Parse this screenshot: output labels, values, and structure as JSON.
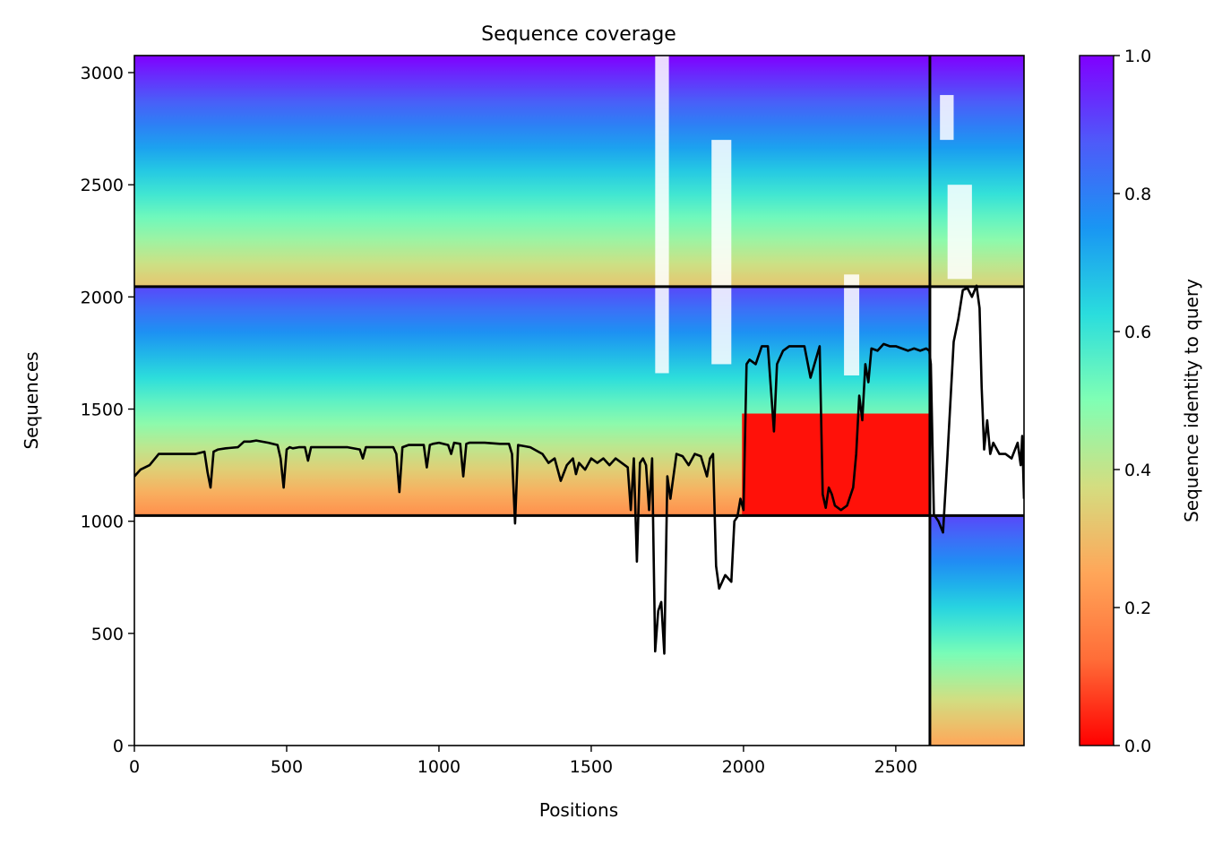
{
  "chart_data": {
    "type": "heatmap",
    "title": "Sequence coverage",
    "xlabel": "Positions",
    "ylabel": "Sequences",
    "xlim": [
      0,
      2921
    ],
    "ylim": [
      0,
      3076
    ],
    "x_ticks": [
      0,
      500,
      1000,
      1500,
      2000,
      2500
    ],
    "y_ticks": [
      0,
      500,
      1000,
      1500,
      2000,
      2500,
      3000
    ],
    "chain_boundaries_x": [
      2612
    ],
    "msa_block_boundaries_y": [
      1025,
      2046
    ],
    "colorbar": {
      "label": "Sequence identity to query",
      "range": [
        0.0,
        1.0
      ],
      "ticks": [
        0.0,
        0.2,
        0.4,
        0.6,
        0.8,
        1.0
      ],
      "colormap": [
        "#ff0000",
        "#ff6d38",
        "#ffa659",
        "#d4dd80",
        "#80ffb4",
        "#2adddd",
        "#1996f3",
        "#4e5af9",
        "#8000ff"
      ]
    },
    "msa_blocks": [
      {
        "x_range": [
          0,
          2612
        ],
        "y_range": [
          2046,
          3076
        ],
        "identity_top": 1.0,
        "identity_bottom": 0.32
      },
      {
        "x_range": [
          0,
          2612
        ],
        "y_range": [
          1025,
          2046
        ],
        "identity_top": 0.9,
        "identity_bottom": 0.2
      },
      {
        "x_range": [
          1995,
          2612
        ],
        "y_range": [
          1025,
          1480
        ],
        "identity_top": 0.02,
        "identity_bottom": 0.02
      },
      {
        "x_range": [
          2612,
          2921
        ],
        "y_range": [
          0,
          1025
        ],
        "identity_top": 0.9,
        "identity_bottom": 0.25
      },
      {
        "x_range": [
          2612,
          2921
        ],
        "y_range": [
          2046,
          3076
        ],
        "identity_top": 1.0,
        "identity_bottom": 0.35
      }
    ],
    "gap_columns": [
      {
        "x_range": [
          1710,
          1755
        ],
        "y_range": [
          1660,
          3076
        ]
      },
      {
        "x_range": [
          1895,
          1960
        ],
        "y_range": [
          1700,
          2700
        ]
      },
      {
        "x_range": [
          2330,
          2380
        ],
        "y_range": [
          1650,
          2100
        ]
      },
      {
        "x_range": [
          2645,
          2690
        ],
        "y_range": [
          2700,
          2900
        ]
      },
      {
        "x_range": [
          2670,
          2750
        ],
        "y_range": [
          2080,
          2500
        ]
      }
    ],
    "series": [
      {
        "name": "",
        "x": [
          0,
          20,
          50,
          80,
          120,
          160,
          200,
          230,
          240,
          250,
          260,
          275,
          300,
          340,
          360,
          380,
          400,
          440,
          470,
          480,
          490,
          500,
          510,
          520,
          540,
          560,
          570,
          580,
          600,
          650,
          700,
          740,
          750,
          760,
          800,
          850,
          860,
          870,
          880,
          900,
          950,
          960,
          970,
          980,
          1000,
          1030,
          1040,
          1050,
          1070,
          1080,
          1090,
          1100,
          1150,
          1200,
          1230,
          1240,
          1250,
          1260,
          1300,
          1340,
          1360,
          1380,
          1400,
          1420,
          1440,
          1450,
          1460,
          1480,
          1500,
          1520,
          1540,
          1560,
          1580,
          1600,
          1620,
          1630,
          1640,
          1650,
          1660,
          1670,
          1680,
          1690,
          1700,
          1710,
          1720,
          1730,
          1740,
          1750,
          1760,
          1780,
          1800,
          1820,
          1840,
          1860,
          1880,
          1890,
          1900,
          1910,
          1920,
          1940,
          1960,
          1970,
          1980,
          1990,
          2000,
          2010,
          2020,
          2040,
          2060,
          2080,
          2100,
          2110,
          2130,
          2150,
          2180,
          2200,
          2220,
          2250,
          2260,
          2270,
          2280,
          2290,
          2300,
          2320,
          2340,
          2360,
          2370,
          2380,
          2390,
          2400,
          2410,
          2420,
          2440,
          2460,
          2480,
          2500,
          2520,
          2540,
          2560,
          2580,
          2600,
          2610,
          2615,
          2625,
          2640,
          2655,
          2670,
          2690,
          2705,
          2720,
          2735,
          2750,
          2765,
          2775,
          2782,
          2790,
          2800,
          2810,
          2820,
          2840,
          2860,
          2880,
          2900,
          2910,
          2915,
          2921
        ],
        "y": [
          1200,
          1230,
          1250,
          1300,
          1300,
          1300,
          1300,
          1310,
          1220,
          1150,
          1310,
          1320,
          1325,
          1330,
          1355,
          1355,
          1360,
          1350,
          1340,
          1280,
          1150,
          1320,
          1330,
          1325,
          1330,
          1330,
          1270,
          1330,
          1330,
          1330,
          1330,
          1320,
          1280,
          1330,
          1330,
          1330,
          1300,
          1130,
          1330,
          1340,
          1340,
          1240,
          1340,
          1345,
          1350,
          1340,
          1300,
          1350,
          1345,
          1200,
          1345,
          1350,
          1350,
          1345,
          1345,
          1300,
          990,
          1340,
          1330,
          1300,
          1260,
          1280,
          1180,
          1250,
          1280,
          1210,
          1260,
          1230,
          1280,
          1260,
          1280,
          1250,
          1280,
          1260,
          1240,
          1050,
          1280,
          820,
          1260,
          1280,
          1250,
          1050,
          1280,
          420,
          600,
          640,
          410,
          1200,
          1100,
          1300,
          1290,
          1250,
          1300,
          1290,
          1200,
          1280,
          1300,
          800,
          700,
          760,
          730,
          1000,
          1020,
          1100,
          1050,
          1700,
          1720,
          1700,
          1780,
          1780,
          1400,
          1700,
          1760,
          1780,
          1780,
          1780,
          1640,
          1780,
          1120,
          1060,
          1150,
          1120,
          1070,
          1050,
          1070,
          1150,
          1300,
          1560,
          1450,
          1700,
          1620,
          1770,
          1760,
          1790,
          1780,
          1780,
          1770,
          1760,
          1770,
          1760,
          1770,
          1760,
          1700,
          1030,
          1000,
          950,
          1300,
          1800,
          1900,
          2030,
          2040,
          2000,
          2050,
          1950,
          1600,
          1320,
          1450,
          1300,
          1350,
          1300,
          1300,
          1280,
          1350,
          1250,
          1380,
          1100
        ]
      }
    ]
  }
}
